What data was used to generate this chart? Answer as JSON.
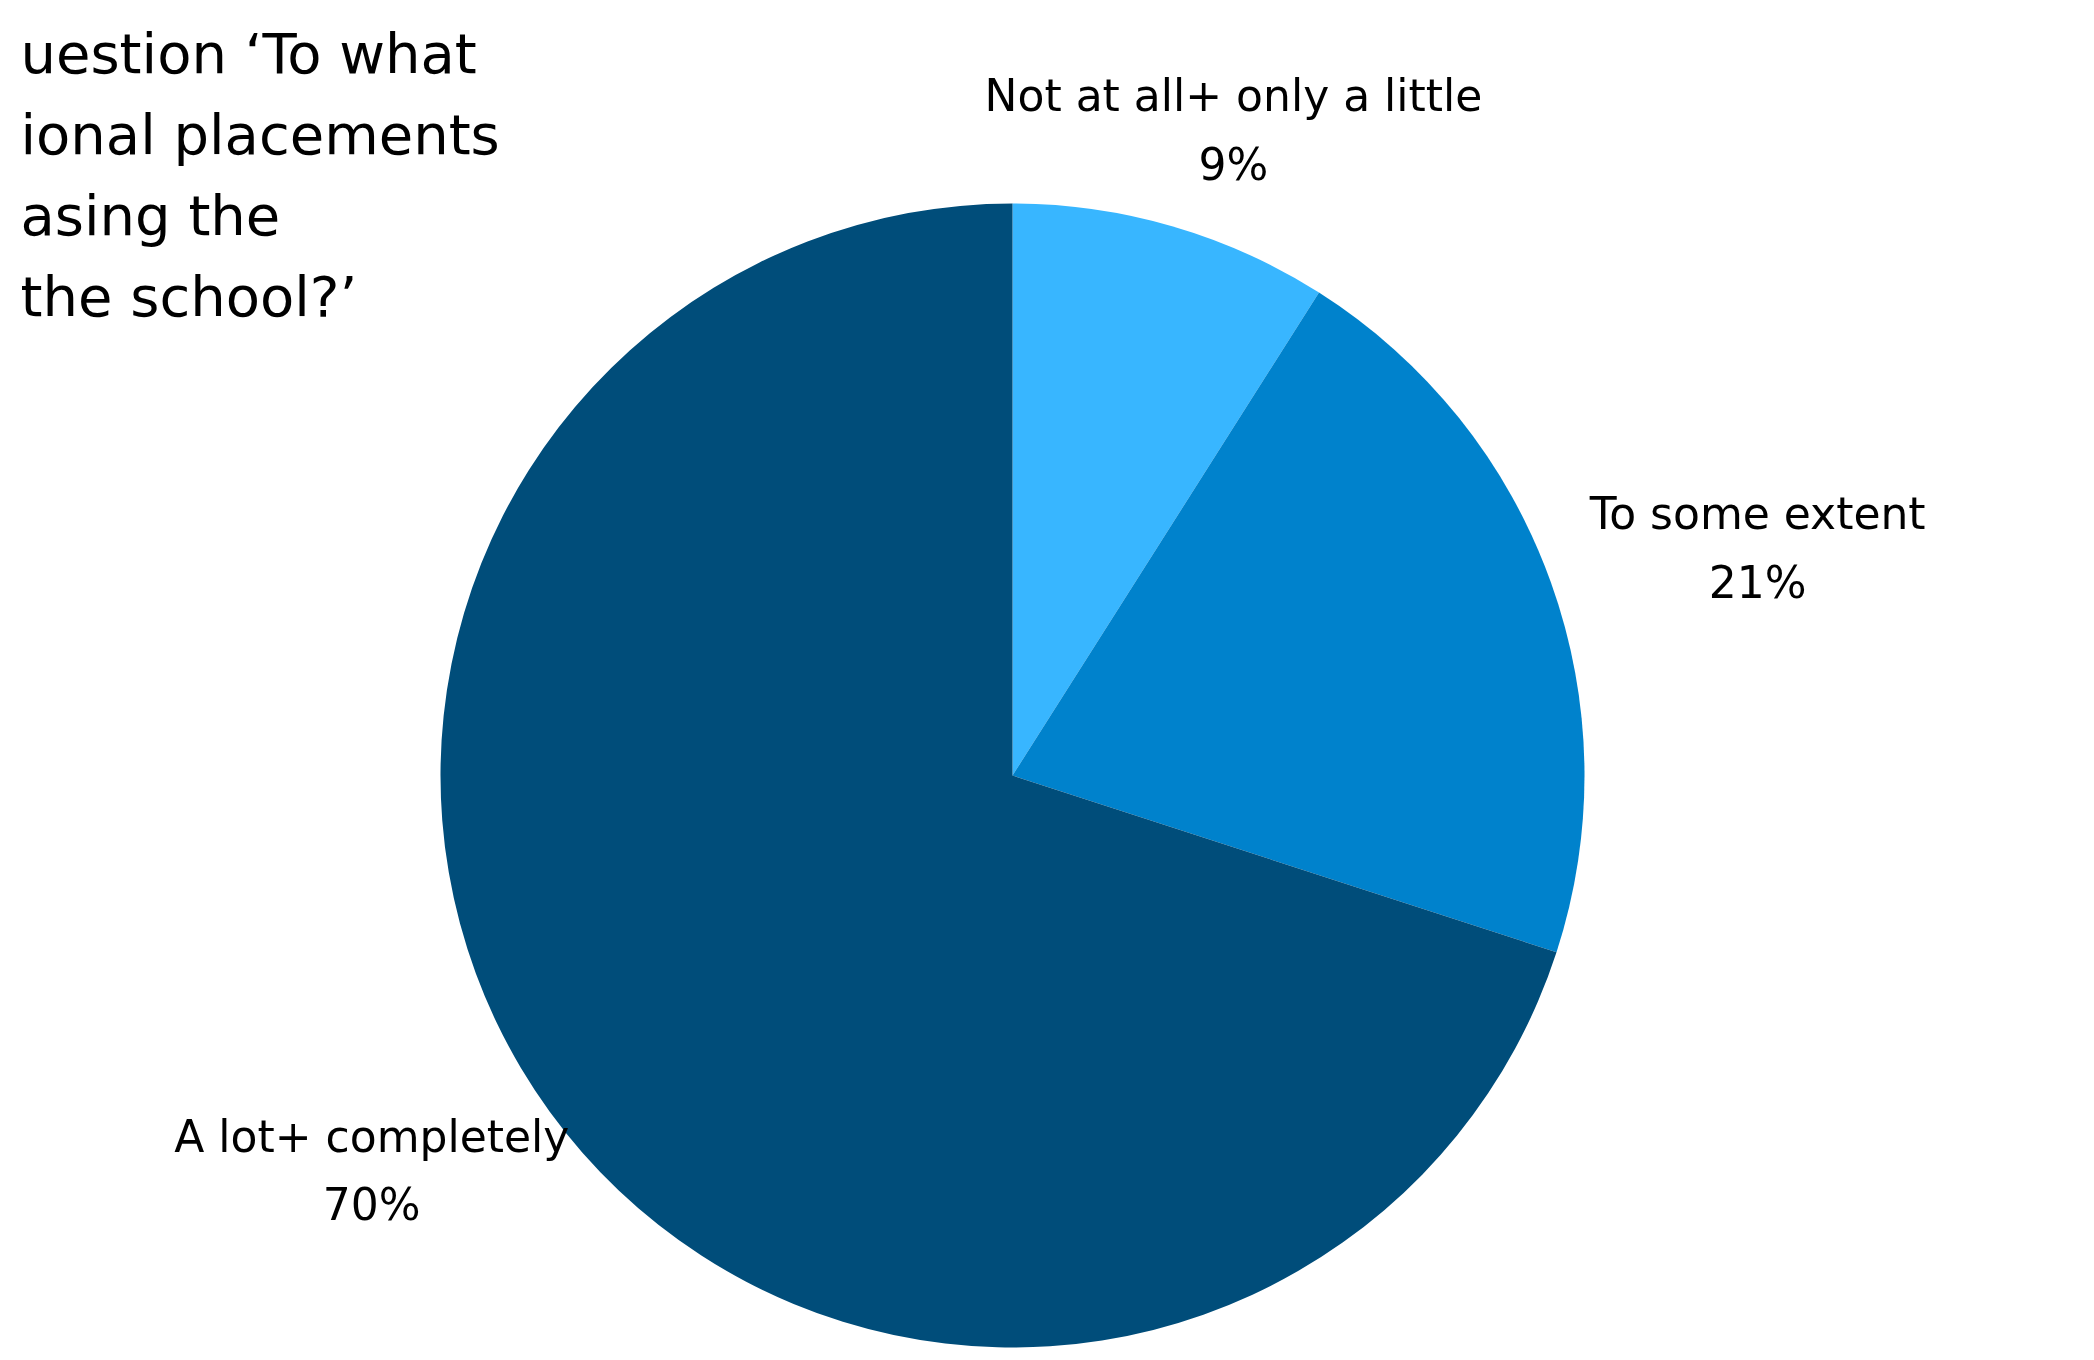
{
  "chart_data": {
    "type": "pie",
    "title": "uestion ‘To what\nional placements\nasing the\nthe school?’",
    "categories": [
      "Not at all+ only a little",
      "To some extent",
      "A lot+ completely"
    ],
    "values": [
      9,
      21,
      70
    ],
    "colors": [
      "#38b6ff",
      "#0082cc",
      "#004d7a"
    ],
    "value_labels": [
      "9%",
      "21%",
      "70%"
    ]
  }
}
